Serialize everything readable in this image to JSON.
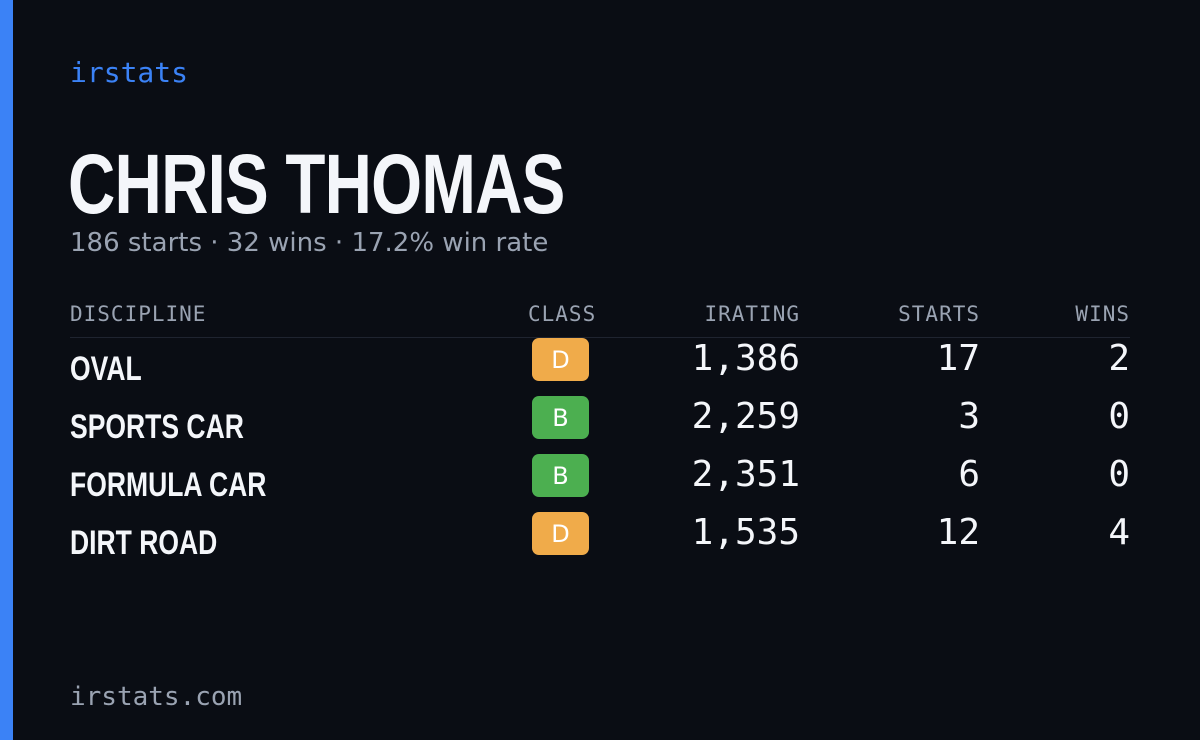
{
  "brand": "irstats",
  "player_name": "CHRIS THOMAS",
  "summary": "186 starts · 32 wins · 17.2% win rate",
  "colors": {
    "accent": "#3b82f6",
    "class_D": "#f0ab4a",
    "class_B": "#4caf50"
  },
  "table": {
    "headers": {
      "discipline": "DISCIPLINE",
      "class": "CLASS",
      "irating": "IRATING",
      "starts": "STARTS",
      "wins": "WINS"
    },
    "rows": [
      {
        "discipline": "OVAL",
        "class": "D",
        "class_color": "#f0ab4a",
        "irating": "1,386",
        "starts": "17",
        "wins": "2"
      },
      {
        "discipline": "SPORTS CAR",
        "class": "B",
        "class_color": "#4caf50",
        "irating": "2,259",
        "starts": "3",
        "wins": "0"
      },
      {
        "discipline": "FORMULA CAR",
        "class": "B",
        "class_color": "#4caf50",
        "irating": "2,351",
        "starts": "6",
        "wins": "0"
      },
      {
        "discipline": "DIRT ROAD",
        "class": "D",
        "class_color": "#f0ab4a",
        "irating": "1,535",
        "starts": "12",
        "wins": "4"
      }
    ]
  },
  "footer": "irstats.com"
}
